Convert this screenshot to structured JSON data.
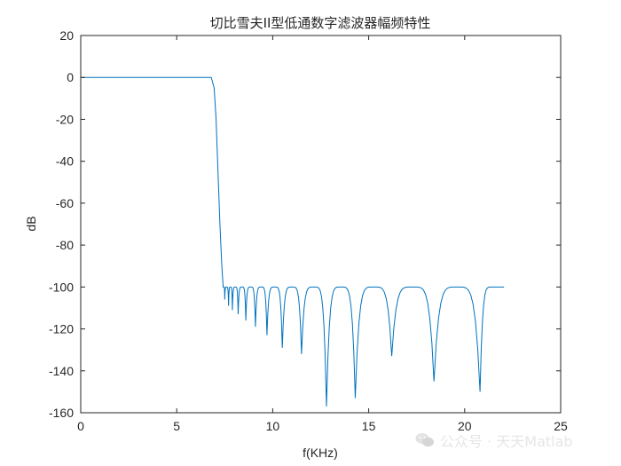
{
  "chart_data": {
    "type": "line",
    "title": "切比雪夫II型低通数字滤波器幅频特性",
    "xlabel": "f(KHz)",
    "ylabel": "dB",
    "xlim": [
      0,
      25
    ],
    "ylim": [
      -160,
      20
    ],
    "xticks": [
      0,
      5,
      10,
      15,
      20,
      25
    ],
    "yticks": [
      20,
      0,
      -20,
      -40,
      -60,
      -80,
      -100,
      -120,
      -140,
      -160
    ],
    "grid": false,
    "series": [
      {
        "color": "#0072BD",
        "passband": {
          "x": [
            0,
            6.8
          ],
          "y": 0
        },
        "transition": [
          [
            6.8,
            0
          ],
          [
            6.95,
            -5
          ],
          [
            7.05,
            -20
          ],
          [
            7.15,
            -45
          ],
          [
            7.25,
            -70
          ],
          [
            7.35,
            -90
          ],
          [
            7.42,
            -100
          ]
        ],
        "stopband_level": -100,
        "stopband_notches": [
          [
            7.5,
            -106
          ],
          [
            7.7,
            -109
          ],
          [
            7.9,
            -111
          ],
          [
            8.2,
            -113
          ],
          [
            8.6,
            -116
          ],
          [
            9.1,
            -119
          ],
          [
            9.7,
            -123
          ],
          [
            10.5,
            -129
          ],
          [
            11.5,
            -132
          ],
          [
            12.8,
            -157
          ],
          [
            14.3,
            -153
          ],
          [
            16.2,
            -133
          ],
          [
            18.4,
            -145
          ],
          [
            20.8,
            -150
          ]
        ],
        "x_end": 22.05
      }
    ]
  },
  "watermark": {
    "icon": "wechat-icon",
    "text": "公众号 · 天天Matlab"
  }
}
